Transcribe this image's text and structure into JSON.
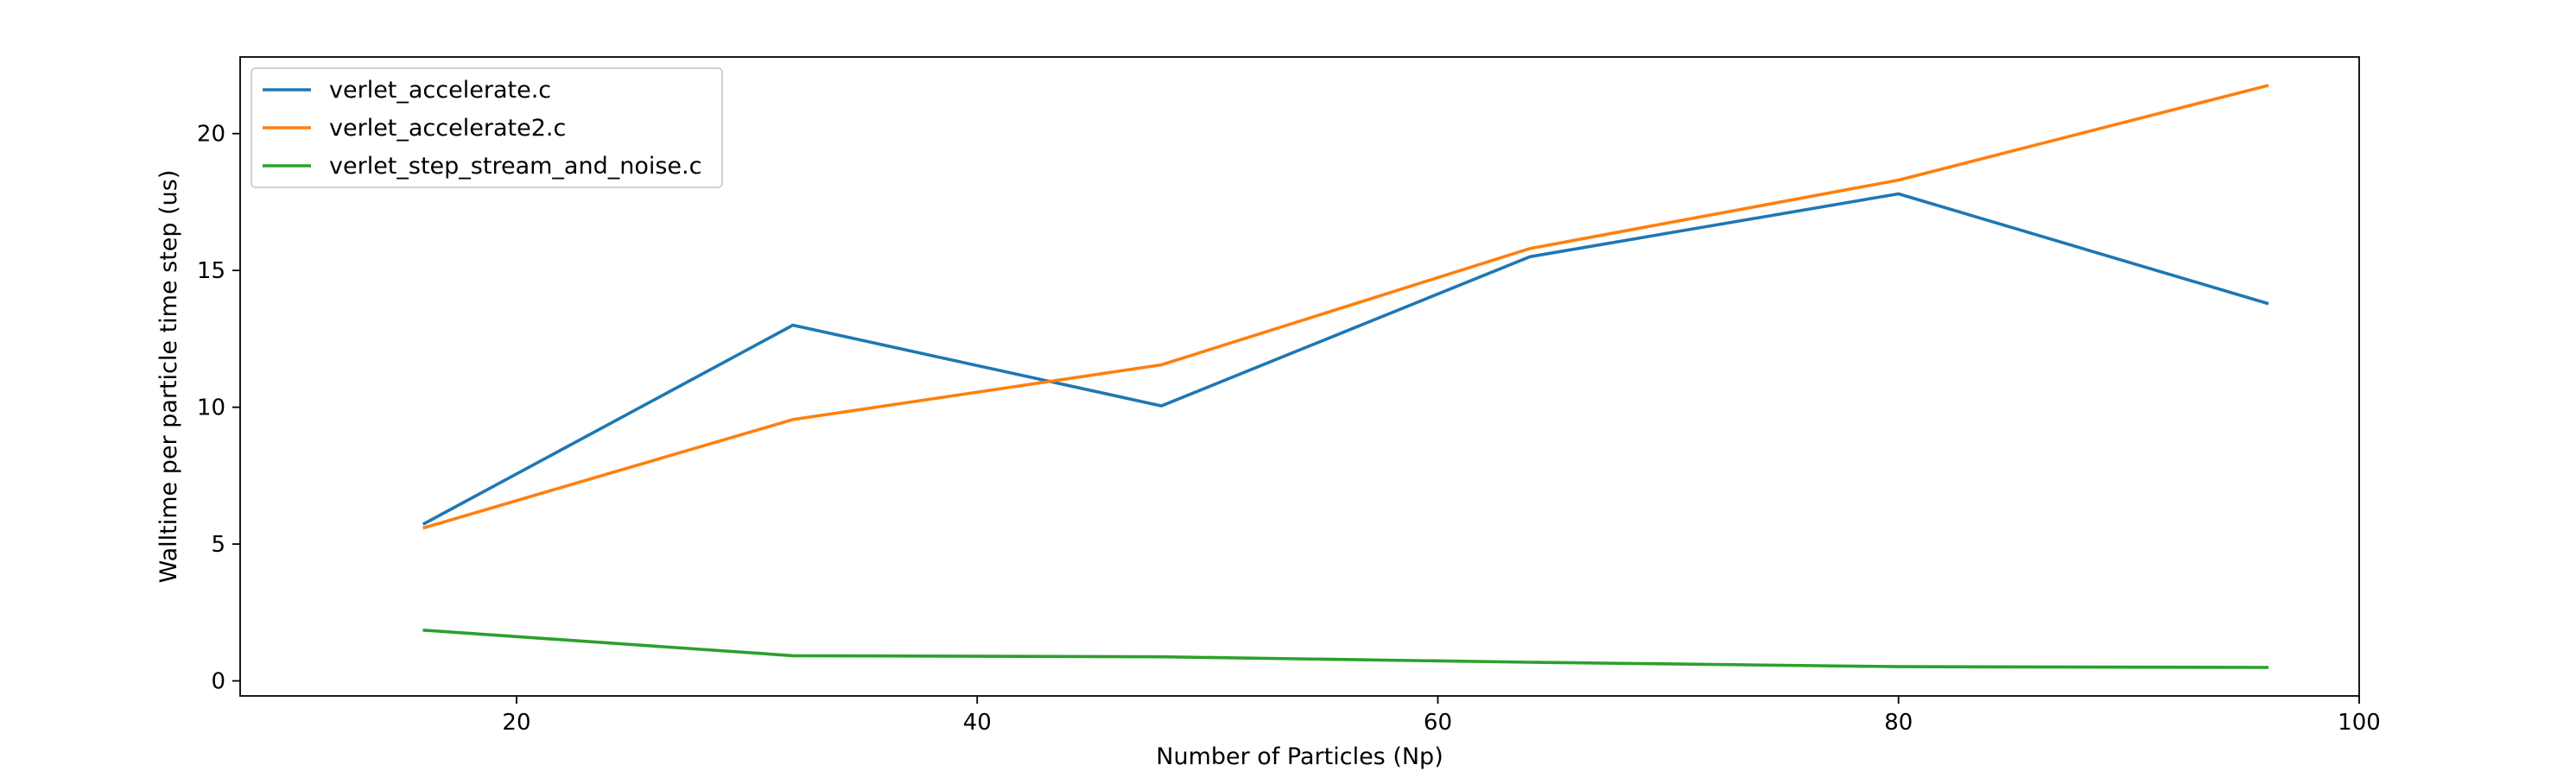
{
  "chart_data": {
    "type": "line",
    "title": "",
    "xlabel": "Number of Particles (Np)",
    "ylabel": "Walltime per particle time step (us)",
    "xlim": [
      8,
      100
    ],
    "ylim": [
      -0.55,
      22.8
    ],
    "xticks": [
      20,
      40,
      60,
      80,
      100
    ],
    "yticks": [
      0,
      5,
      10,
      15,
      20
    ],
    "xtick_labels": [
      "20",
      "40",
      "60",
      "80",
      "100"
    ],
    "ytick_labels": [
      "0",
      "5",
      "10",
      "15",
      "20"
    ],
    "x": [
      16,
      32,
      48,
      64,
      80,
      96
    ],
    "grid": false,
    "legend_position": "upper-left",
    "series": [
      {
        "name": "verlet_accelerate.c",
        "color": "#1f77b4",
        "values": [
          5.75,
          13.0,
          10.05,
          15.5,
          17.8,
          13.8
        ]
      },
      {
        "name": "verlet_accelerate2.c",
        "color": "#ff7f0e",
        "values": [
          5.6,
          9.55,
          11.55,
          15.8,
          18.3,
          21.75
        ]
      },
      {
        "name": "verlet_step_stream_and_noise.c",
        "color": "#2ca02c",
        "values": [
          1.85,
          0.92,
          0.88,
          0.68,
          0.52,
          0.49
        ]
      }
    ]
  }
}
